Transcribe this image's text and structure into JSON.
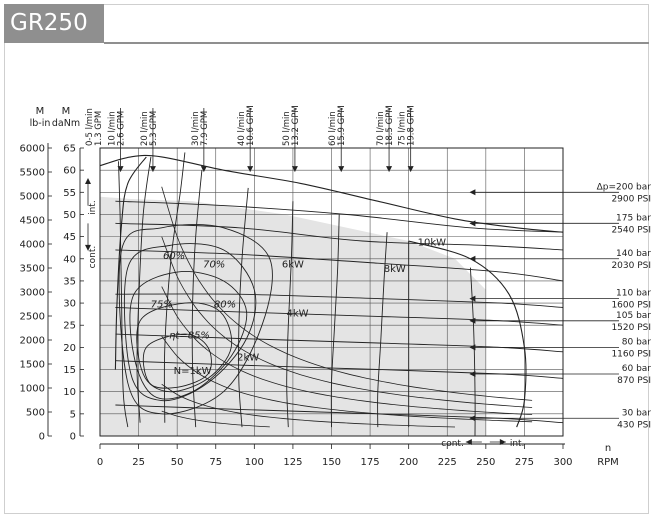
{
  "header": {
    "title": "GR250"
  },
  "chart_data": {
    "type": "line",
    "title": "GR250",
    "xlabel_top": "n",
    "xlabel_bottom": "RPM",
    "ylabel_danm": "M daNm",
    "ylabel_lbin": "M lb-in",
    "xlim": [
      0,
      300
    ],
    "ylim_danm": [
      0,
      65
    ],
    "ylim_lbin": [
      0,
      6000
    ],
    "x_ticks": [
      "0",
      "25",
      "50",
      "75",
      "100",
      "125",
      "150",
      "175",
      "200",
      "225",
      "250",
      "275",
      "300"
    ],
    "y_ticks_danm": [
      "0",
      "5",
      "10",
      "15",
      "20",
      "25",
      "30",
      "35",
      "40",
      "45",
      "50",
      "55",
      "60",
      "65"
    ],
    "y_ticks_lbin": [
      "0",
      "500",
      "1000",
      "1500",
      "2000",
      "2500",
      "3000",
      "3500",
      "4000",
      "4500",
      "5000",
      "5500",
      "6000"
    ],
    "flow_labels": [
      {
        "lmin": "0-5 l/min",
        "gpm": "1.3 GPM",
        "rpm": 0
      },
      {
        "lmin": "10 l/min",
        "gpm": "2.6 GPM",
        "rpm": 12
      },
      {
        "lmin": "20 l/min",
        "gpm": "5.3 GPM",
        "rpm": 33
      },
      {
        "lmin": "30 l/min",
        "gpm": "7.9 GPM",
        "rpm": 66
      },
      {
        "lmin": "40 l/min",
        "gpm": "10.6 GPM",
        "rpm": 96
      },
      {
        "lmin": "50 l/min",
        "gpm": "13.2 GPM",
        "rpm": 125
      },
      {
        "lmin": "60 l/min",
        "gpm": "15.9 GPM",
        "rpm": 155
      },
      {
        "lmin": "70 l/min",
        "gpm": "18.5 GPM",
        "rpm": 186
      },
      {
        "lmin": "75 l/min",
        "gpm": "19.8 GPM",
        "rpm": 200
      }
    ],
    "pressure_labels": [
      {
        "bar": "Δp=200 bar",
        "psi": "2900 PSI",
        "torque": 55
      },
      {
        "bar": "175 bar",
        "psi": "2540 PSI",
        "torque": 48
      },
      {
        "bar": "140 bar",
        "psi": "2030 PSI",
        "torque": 40
      },
      {
        "bar": "110 bar",
        "psi": "1600 PSI",
        "torque": 31
      },
      {
        "bar": "105 bar",
        "psi": "1520 PSI",
        "torque": 26
      },
      {
        "bar": "80 bar",
        "psi": "1160 PSI",
        "torque": 20
      },
      {
        "bar": "60 bar",
        "psi": "870 PSI",
        "torque": 14
      },
      {
        "bar": "30 bar",
        "psi": "430 PSI",
        "torque": 4
      }
    ],
    "efficiency_labels": [
      {
        "text": "60%",
        "rpm": 48,
        "torque": 40
      },
      {
        "text": "70%",
        "rpm": 74,
        "torque": 38
      },
      {
        "text": "75%",
        "rpm": 40,
        "torque": 29
      },
      {
        "text": "80%",
        "rpm": 81,
        "torque": 29
      },
      {
        "text": "ηt=85%",
        "rpm": 58,
        "torque": 22
      }
    ],
    "power_labels": [
      {
        "text": "N=1kW",
        "rpm": 60,
        "torque": 14
      },
      {
        "text": "2kW",
        "rpm": 96,
        "torque": 17
      },
      {
        "text": "4kW",
        "rpm": 128,
        "torque": 27
      },
      {
        "text": "6kW",
        "rpm": 125,
        "torque": 38
      },
      {
        "text": "8kW",
        "rpm": 191,
        "torque": 37
      },
      {
        "text": "10kW",
        "rpm": 215,
        "torque": 43
      }
    ],
    "region_labels": {
      "int_top": "int.",
      "cont_left": "cont.",
      "cont_bottom": "cont.",
      "int_bottom": "int."
    },
    "grid": true
  }
}
